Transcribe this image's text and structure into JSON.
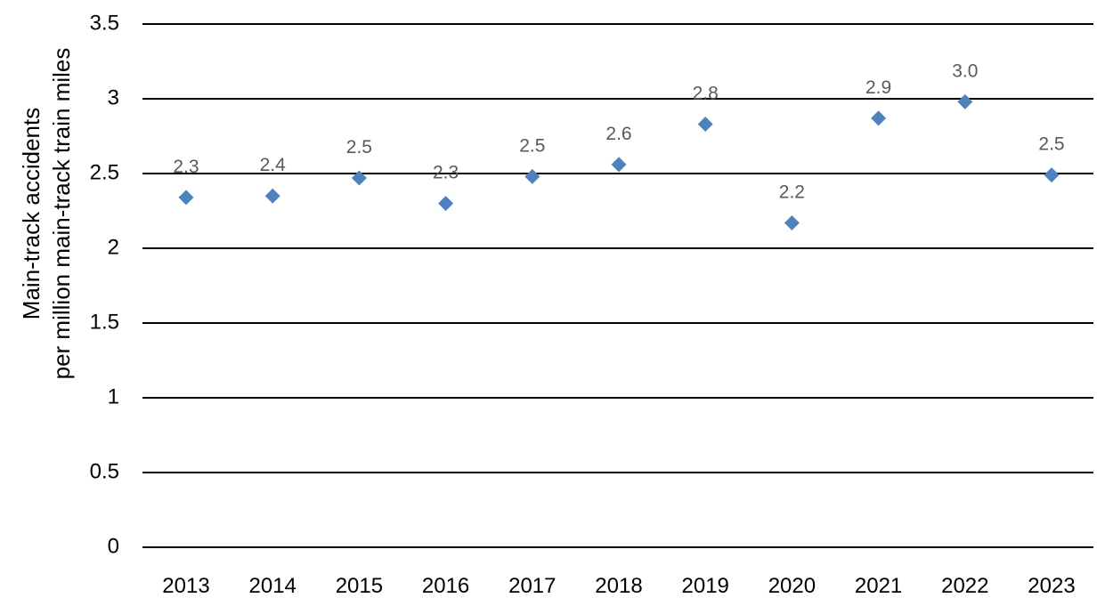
{
  "chart_data": {
    "type": "scatter",
    "title": "",
    "xlabel": "",
    "ylabel_line1": "Main-track accidents",
    "ylabel_line2": "per million main-track train miles",
    "ylim": [
      0,
      3.5
    ],
    "yticks": [
      "0",
      "0.5",
      "1",
      "1.5",
      "2",
      "2.5",
      "3",
      "3.5"
    ],
    "grid": true,
    "legend": "none",
    "marker": "diamond",
    "marker_color": "#4f81bd",
    "categories": [
      "2013",
      "2014",
      "2015",
      "2016",
      "2017",
      "2018",
      "2019",
      "2020",
      "2021",
      "2022",
      "2023"
    ],
    "values": [
      2.34,
      2.35,
      2.47,
      2.3,
      2.48,
      2.56,
      2.83,
      2.17,
      2.87,
      2.98,
      2.49
    ],
    "data_labels": [
      "2.3",
      "2.4",
      "2.5",
      "2.3",
      "2.5",
      "2.6",
      "2.8",
      "2.2",
      "2.9",
      "3.0",
      "2.5"
    ]
  }
}
